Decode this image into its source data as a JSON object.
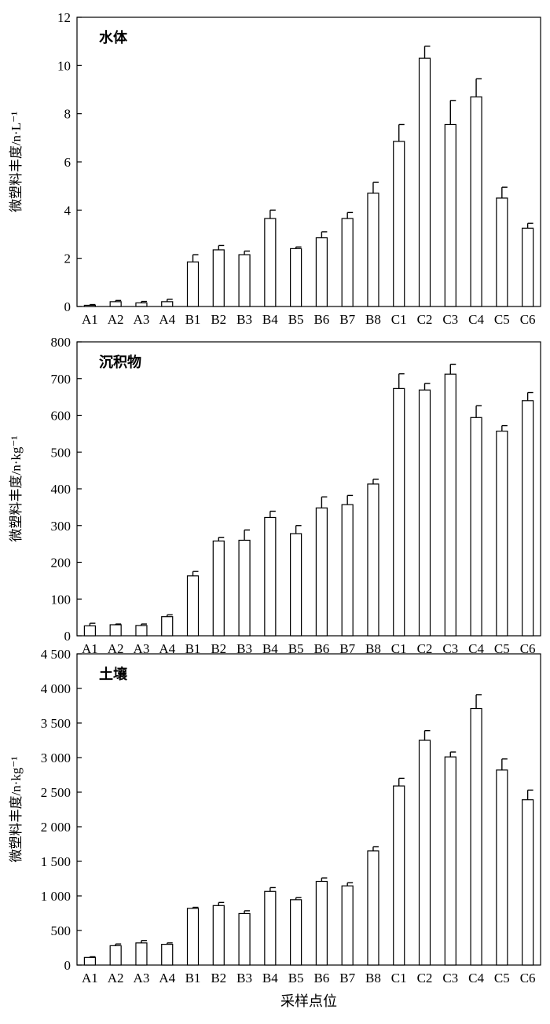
{
  "chart_data": [
    {
      "type": "bar",
      "panel_label": "水体",
      "ylabel": "微塑料丰度/n·L⁻¹",
      "xlabel": "",
      "categories": [
        "A1",
        "A2",
        "A3",
        "A4",
        "B1",
        "B2",
        "B3",
        "B4",
        "B5",
        "B6",
        "B7",
        "B8",
        "C1",
        "C2",
        "C3",
        "C4",
        "C5",
        "C6"
      ],
      "values": [
        0.05,
        0.2,
        0.15,
        0.2,
        1.85,
        2.35,
        2.15,
        3.65,
        2.4,
        2.85,
        3.65,
        4.7,
        6.85,
        10.3,
        7.55,
        8.7,
        4.5,
        3.25
      ],
      "errors": [
        0.03,
        0.05,
        0.06,
        0.1,
        0.3,
        0.18,
        0.15,
        0.35,
        0.07,
        0.25,
        0.25,
        0.45,
        0.7,
        0.5,
        1.0,
        0.75,
        0.45,
        0.2
      ],
      "ylim": [
        0,
        12
      ],
      "yticks": [
        0,
        2,
        4,
        6,
        8,
        10,
        12
      ],
      "ytick_labels": [
        "0",
        "2",
        "4",
        "6",
        "8",
        "10",
        "12"
      ],
      "grid": false
    },
    {
      "type": "bar",
      "panel_label": "沉积物",
      "ylabel": "微塑料丰度/n·kg⁻¹",
      "xlabel": "",
      "categories": [
        "A1",
        "A2",
        "A3",
        "A4",
        "B1",
        "B2",
        "B3",
        "B4",
        "B5",
        "B6",
        "B7",
        "B8",
        "C1",
        "C2",
        "C3",
        "C4",
        "C5",
        "C6"
      ],
      "values": [
        27,
        30,
        28,
        52,
        163,
        258,
        260,
        322,
        278,
        348,
        357,
        413,
        673,
        669,
        712,
        594,
        557,
        640
      ],
      "errors": [
        7,
        2,
        4,
        5,
        12,
        10,
        28,
        17,
        22,
        30,
        25,
        13,
        40,
        18,
        27,
        32,
        15,
        22
      ],
      "ylim": [
        0,
        800
      ],
      "yticks": [
        0,
        100,
        200,
        300,
        400,
        500,
        600,
        700,
        800
      ],
      "ytick_labels": [
        "0",
        "100",
        "200",
        "300",
        "400",
        "500",
        "600",
        "700",
        "800"
      ],
      "grid": false
    },
    {
      "type": "bar",
      "panel_label": "土壤",
      "ylabel": "微塑料丰度/n·kg⁻¹",
      "xlabel": "采样点位",
      "categories": [
        "A1",
        "A2",
        "A3",
        "A4",
        "B1",
        "B2",
        "B3",
        "B4",
        "B5",
        "B6",
        "B7",
        "B8",
        "C1",
        "C2",
        "C3",
        "C4",
        "C5",
        "C6"
      ],
      "values": [
        110,
        280,
        320,
        300,
        820,
        860,
        745,
        1065,
        945,
        1210,
        1145,
        1650,
        2590,
        3250,
        3010,
        3710,
        2820,
        2390
      ],
      "errors": [
        10,
        25,
        35,
        20,
        15,
        45,
        40,
        55,
        30,
        50,
        45,
        60,
        110,
        140,
        70,
        200,
        160,
        140
      ],
      "ylim": [
        0,
        4500
      ],
      "yticks": [
        0,
        500,
        1000,
        1500,
        2000,
        2500,
        3000,
        3500,
        4000,
        4500
      ],
      "ytick_labels": [
        "0",
        "500",
        "1 000",
        "1 500",
        "2 000",
        "2 500",
        "3 000",
        "3 500",
        "4 000",
        "4 500"
      ],
      "grid": false
    }
  ]
}
